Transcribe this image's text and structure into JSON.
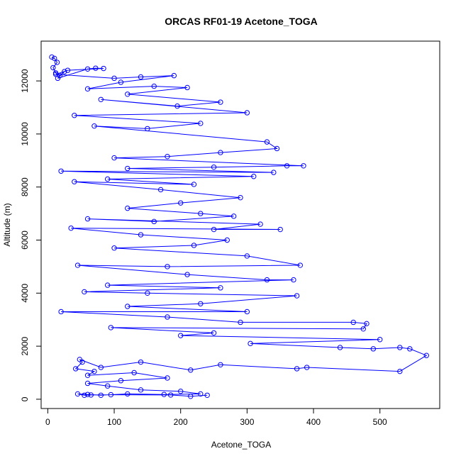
{
  "chart_data": {
    "type": "scatter",
    "title": "ORCAS RF01-19 Acetone_TOGA",
    "xlabel": "Acetone_TOGA",
    "ylabel": "Altitude (m)",
    "xlim": [
      -10,
      590
    ],
    "ylim": [
      -350,
      13500
    ],
    "x_ticks": [
      0,
      100,
      200,
      300,
      400,
      500
    ],
    "y_ticks": [
      0,
      2000,
      4000,
      6000,
      8000,
      10000,
      12000
    ],
    "x_tick_labels": [
      "0",
      "100",
      "200",
      "300",
      "400",
      "500"
    ],
    "y_tick_labels": [
      "0",
      "2000",
      "4000",
      "6000",
      "8000",
      "10000",
      "12000"
    ],
    "grid": false,
    "legend": "none",
    "series": [
      {
        "color": "#0000ff",
        "marker": "open-circle",
        "connected": true,
        "points": [
          [
            6,
            12900
          ],
          [
            10,
            12850
          ],
          [
            14,
            12700
          ],
          [
            8,
            12500
          ],
          [
            12,
            12300
          ],
          [
            18,
            12200
          ],
          [
            25,
            12350
          ],
          [
            15,
            12100
          ],
          [
            60,
            12450
          ],
          [
            72,
            12480
          ],
          [
            84,
            12470
          ],
          [
            30,
            12400
          ],
          [
            12,
            12250
          ],
          [
            100,
            12100
          ],
          [
            140,
            12150
          ],
          [
            190,
            12200
          ],
          [
            110,
            11950
          ],
          [
            60,
            11700
          ],
          [
            160,
            11800
          ],
          [
            210,
            11750
          ],
          [
            120,
            11500
          ],
          [
            260,
            11200
          ],
          [
            195,
            11050
          ],
          [
            80,
            11300
          ],
          [
            300,
            10800
          ],
          [
            40,
            10700
          ],
          [
            230,
            10400
          ],
          [
            150,
            10200
          ],
          [
            70,
            10300
          ],
          [
            330,
            9700
          ],
          [
            345,
            9450
          ],
          [
            260,
            9300
          ],
          [
            180,
            9150
          ],
          [
            100,
            9100
          ],
          [
            385,
            8800
          ],
          [
            360,
            8800
          ],
          [
            250,
            8750
          ],
          [
            120,
            8700
          ],
          [
            340,
            8550
          ],
          [
            20,
            8600
          ],
          [
            310,
            8400
          ],
          [
            90,
            8300
          ],
          [
            220,
            8100
          ],
          [
            40,
            8200
          ],
          [
            170,
            7900
          ],
          [
            290,
            7600
          ],
          [
            200,
            7400
          ],
          [
            120,
            7200
          ],
          [
            230,
            7000
          ],
          [
            280,
            6900
          ],
          [
            160,
            6700
          ],
          [
            60,
            6800
          ],
          [
            320,
            6600
          ],
          [
            250,
            6400
          ],
          [
            350,
            6400
          ],
          [
            35,
            6450
          ],
          [
            140,
            6200
          ],
          [
            270,
            6000
          ],
          [
            220,
            5800
          ],
          [
            100,
            5700
          ],
          [
            300,
            5400
          ],
          [
            380,
            5050
          ],
          [
            180,
            5000
          ],
          [
            45,
            5050
          ],
          [
            210,
            4700
          ],
          [
            330,
            4500
          ],
          [
            370,
            4500
          ],
          [
            90,
            4300
          ],
          [
            260,
            4200
          ],
          [
            55,
            4050
          ],
          [
            150,
            4000
          ],
          [
            375,
            3900
          ],
          [
            230,
            3600
          ],
          [
            120,
            3500
          ],
          [
            300,
            3300
          ],
          [
            20,
            3300
          ],
          [
            180,
            3100
          ],
          [
            290,
            2900
          ],
          [
            460,
            2900
          ],
          [
            480,
            2850
          ],
          [
            475,
            2650
          ],
          [
            95,
            2700
          ],
          [
            250,
            2500
          ],
          [
            200,
            2400
          ],
          [
            500,
            2250
          ],
          [
            305,
            2100
          ],
          [
            440,
            1950
          ],
          [
            490,
            1900
          ],
          [
            530,
            1950
          ],
          [
            545,
            1900
          ],
          [
            570,
            1650
          ],
          [
            530,
            1050
          ],
          [
            390,
            1200
          ],
          [
            375,
            1150
          ],
          [
            260,
            1300
          ],
          [
            215,
            1100
          ],
          [
            140,
            1400
          ],
          [
            80,
            1200
          ],
          [
            48,
            1500
          ],
          [
            52,
            1400
          ],
          [
            42,
            1150
          ],
          [
            70,
            1050
          ],
          [
            60,
            900
          ],
          [
            130,
            1000
          ],
          [
            180,
            800
          ],
          [
            110,
            700
          ],
          [
            60,
            600
          ],
          [
            90,
            500
          ],
          [
            140,
            350
          ],
          [
            200,
            300
          ],
          [
            230,
            200
          ],
          [
            175,
            180
          ],
          [
            120,
            200
          ],
          [
            80,
            150
          ],
          [
            60,
            180
          ],
          [
            45,
            200
          ],
          [
            55,
            150
          ],
          [
            65,
            160
          ],
          [
            95,
            170
          ],
          [
            185,
            160
          ],
          [
            215,
            110
          ],
          [
            240,
            150
          ]
        ]
      }
    ]
  }
}
